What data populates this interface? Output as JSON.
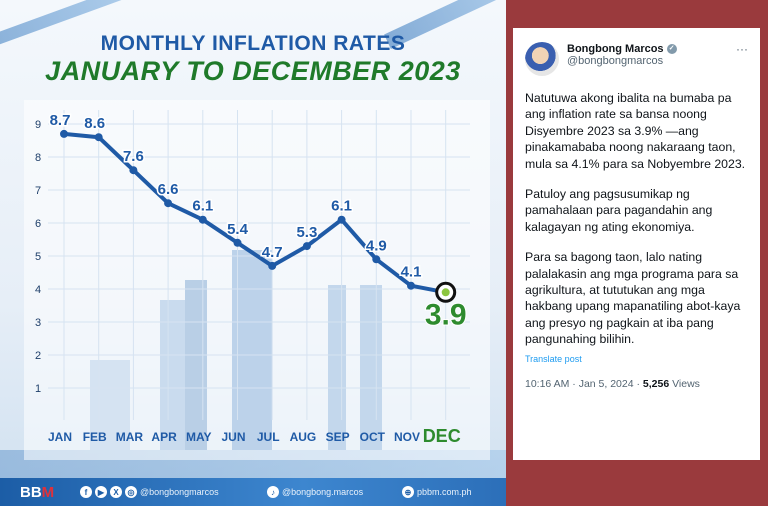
{
  "infographic": {
    "title_line1": "MONTHLY INFLATION RATES",
    "title_line2": "JANUARY TO DECEMBER 2023",
    "colors": {
      "line": "#1f5aa6",
      "label": "#1f5aa6",
      "highlight": "#2e8b2e",
      "title_green": "#1f7a2a"
    },
    "footer": {
      "logo": "BBM",
      "social_icons": [
        "facebook-icon",
        "youtube-icon",
        "x-icon",
        "instagram-icon"
      ],
      "handle1": "@bongbongmarcos",
      "tiktok_handle": "@bongbong.marcos",
      "website": "pbbm.com.ph"
    }
  },
  "chart_data": {
    "type": "line",
    "title": "MONTHLY INFLATION RATES JANUARY TO DECEMBER 2023",
    "categories": [
      "JAN",
      "FEB",
      "MAR",
      "APR",
      "MAY",
      "JUN",
      "JUL",
      "AUG",
      "SEP",
      "OCT",
      "NOV",
      "DEC"
    ],
    "values": [
      8.7,
      8.6,
      7.6,
      6.6,
      6.1,
      5.4,
      4.7,
      5.3,
      6.1,
      4.9,
      4.1,
      3.9
    ],
    "data_labels": [
      "8.7",
      "8.6",
      "7.6",
      "6.6",
      "6.1",
      "5.4",
      "4.7",
      "5.3",
      "6.1",
      "4.9",
      "4.1",
      "3.9"
    ],
    "yticks": [
      "1",
      "2",
      "3",
      "4",
      "5",
      "6",
      "7",
      "8",
      "9"
    ],
    "ylim": [
      1,
      9
    ],
    "grid": true,
    "highlight": "DEC"
  },
  "post": {
    "name": "Bongbong Marcos",
    "handle": "@bongbongmarcos",
    "more": "···",
    "paragraphs": [
      "Natutuwa akong ibalita na bumaba pa ang inflation rate sa bansa noong Disyembre 2023 sa 3.9% —ang pinakamababa noong nakaraang taon, mula sa 4.1% para sa Nobyembre 2023.",
      "Patuloy ang pagsusumikap ng pamahalaan para pagandahin ang kalagayan ng ating ekonomiya.",
      "Para sa bagong taon, lalo nating palalakasin ang mga programa para sa agrikultura, at tututukan ang mga hakbang upang mapanatiling abot-kaya ang presyo ng pagkain at iba pang pangunahing bilihin."
    ],
    "translate": "Translate post",
    "time": "10:16 AM · Jan 5, 2024 · ",
    "views_count": "5,256",
    "views_label": " Views"
  }
}
